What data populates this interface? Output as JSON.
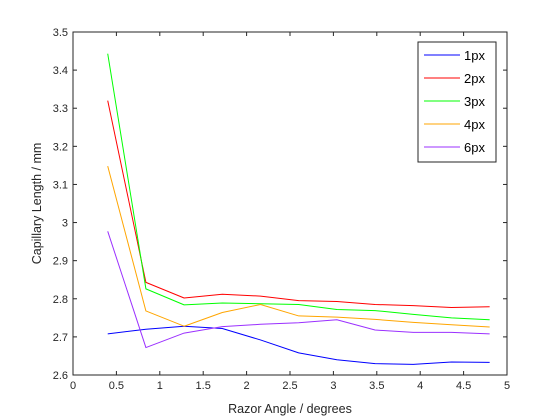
{
  "chart_data": {
    "type": "line",
    "title": "",
    "xlabel": "Razor Angle / degrees",
    "ylabel": "Capillary Length / mm",
    "xlim": [
      0,
      5
    ],
    "ylim": [
      2.6,
      3.5
    ],
    "xticks": [
      "0",
      "0.5",
      "1",
      "1.5",
      "2",
      "2.5",
      "3",
      "3.5",
      "4",
      "4.5",
      "5"
    ],
    "yticks": [
      "2.6",
      "2.7",
      "2.8",
      "2.9",
      "3",
      "3.1",
      "3.2",
      "3.3",
      "3.4",
      "3.5"
    ],
    "grid": false,
    "legend_position": "top-right",
    "x": [
      0.4,
      0.84,
      1.28,
      1.72,
      2.16,
      2.6,
      3.04,
      3.48,
      3.92,
      4.36,
      4.8
    ],
    "series": [
      {
        "name": "1px",
        "color": "#0000ff",
        "values": [
          2.708,
          2.72,
          2.728,
          2.722,
          2.692,
          2.658,
          2.64,
          2.63,
          2.628,
          2.634,
          2.633
        ]
      },
      {
        "name": "2px",
        "color": "#ff0000",
        "values": [
          3.32,
          2.843,
          2.802,
          2.812,
          2.807,
          2.795,
          2.793,
          2.785,
          2.782,
          2.777,
          2.779
        ]
      },
      {
        "name": "3px",
        "color": "#00ff00",
        "values": [
          3.443,
          2.826,
          2.784,
          2.789,
          2.787,
          2.785,
          2.772,
          2.769,
          2.759,
          2.75,
          2.745
        ]
      },
      {
        "name": "4px",
        "color": "#ffa500",
        "values": [
          3.148,
          2.768,
          2.728,
          2.764,
          2.785,
          2.755,
          2.752,
          2.746,
          2.738,
          2.732,
          2.726
        ]
      },
      {
        "name": "6px",
        "color": "#9b30ff",
        "values": [
          2.977,
          2.672,
          2.71,
          2.727,
          2.733,
          2.737,
          2.745,
          2.718,
          2.712,
          2.712,
          2.708
        ]
      }
    ]
  }
}
